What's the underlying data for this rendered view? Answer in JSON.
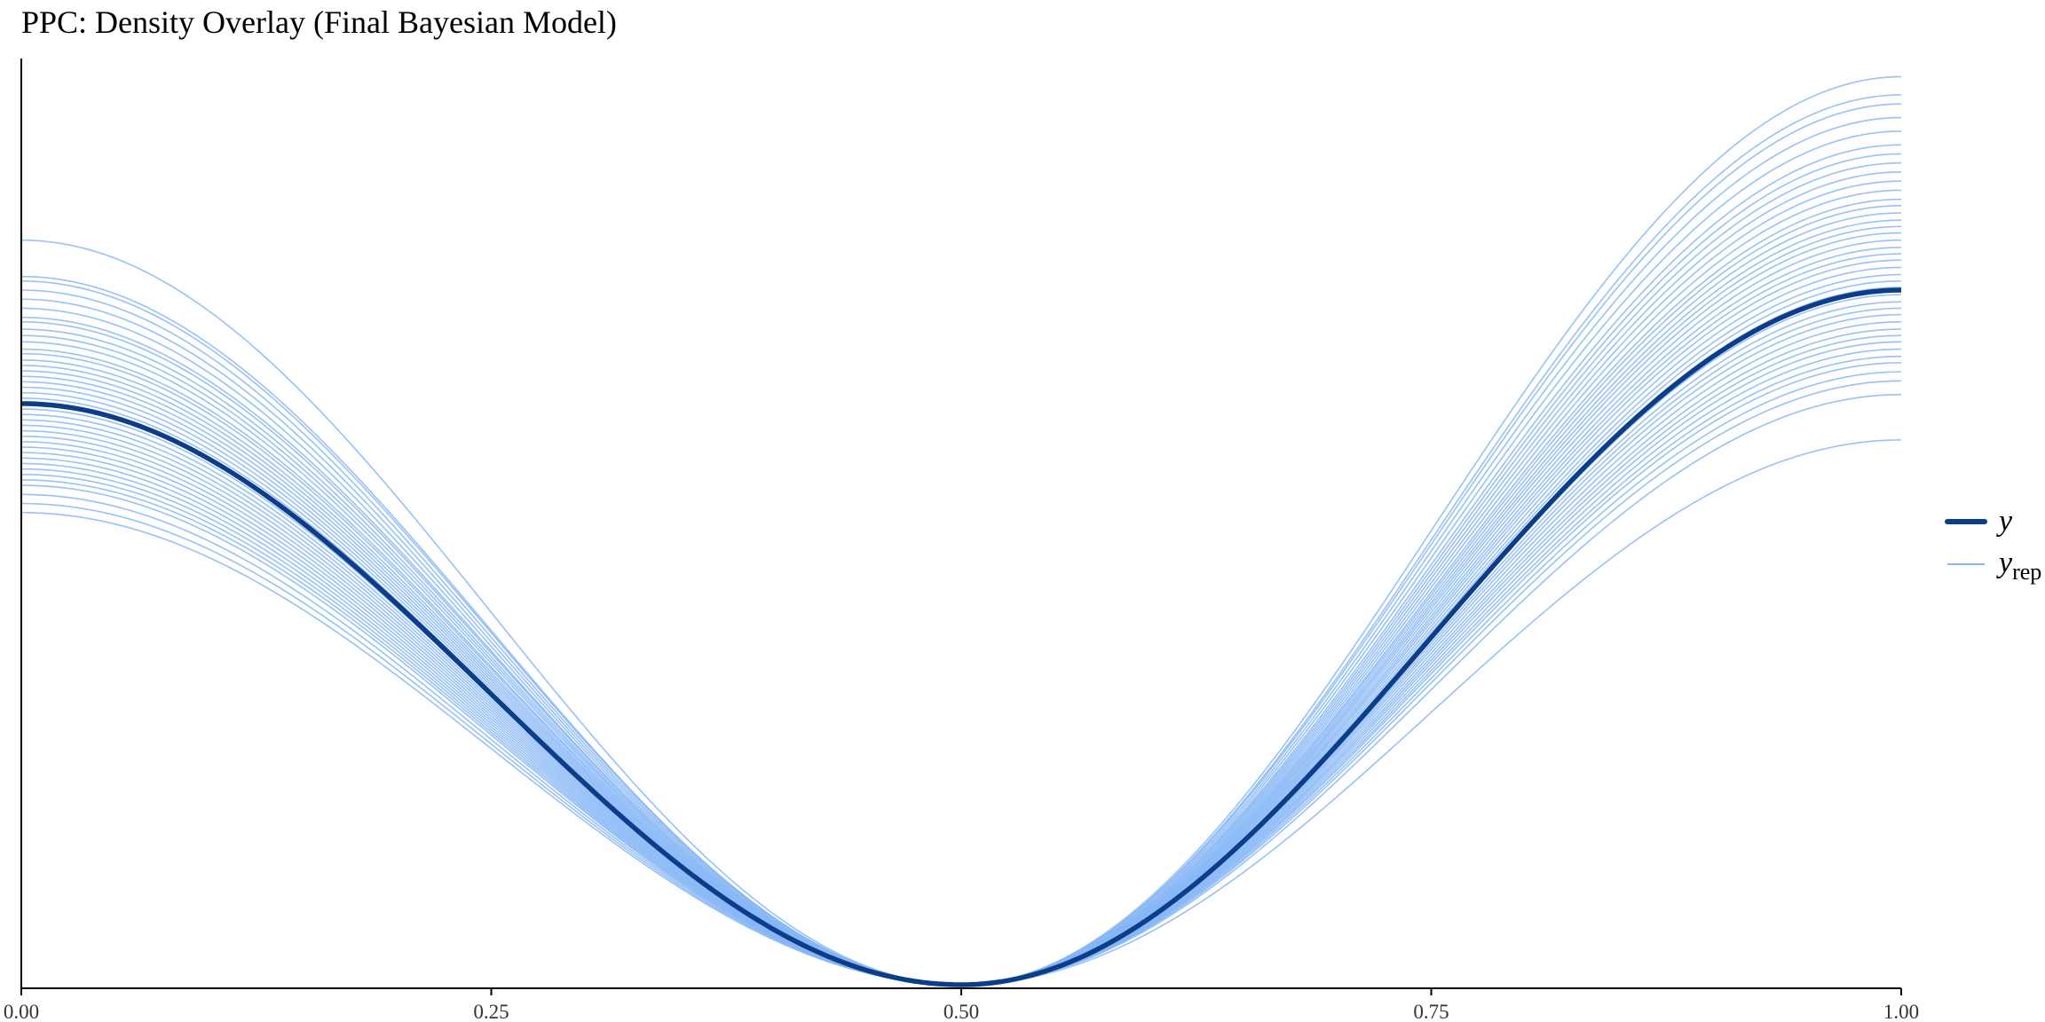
{
  "chart_data": {
    "type": "line",
    "title": "PPC: Density Overlay (Final Bayesian Model)",
    "xlabel": "",
    "ylabel": "",
    "xlim": [
      0,
      1
    ],
    "ylim": [
      0,
      1.02
    ],
    "x_ticks": [
      "0.00",
      "0.25",
      "0.50",
      "0.75",
      "1.00"
    ],
    "grid": false,
    "legend_position": "right",
    "legend": [
      {
        "name": "y",
        "style": "thick dark line"
      },
      {
        "name": "y",
        "subscript": "rep",
        "style": "thin light lines"
      }
    ],
    "colors": {
      "y": "#0b3d8a",
      "y_rep": "#86b6f6",
      "axis": "#000000"
    },
    "density_shape": "raised-cosine: density(x) = left*((1+cos(2*pi*x))/2) for x<0.5, right*((1+cos(2*pi*x))/2) for x>=0.5",
    "series": [
      {
        "name": "y",
        "left_peak": 0.64,
        "right_peak": 0.765
      }
    ],
    "y_rep_left_peaks": [
      0.82,
      0.78,
      0.775,
      0.765,
      0.755,
      0.745,
      0.735,
      0.73,
      0.722,
      0.715,
      0.708,
      0.7,
      0.695,
      0.688,
      0.682,
      0.676,
      0.67,
      0.664,
      0.658,
      0.652,
      0.646,
      0.64,
      0.634,
      0.628,
      0.622,
      0.616,
      0.61,
      0.604,
      0.598,
      0.592,
      0.586,
      0.58,
      0.574,
      0.568,
      0.562,
      0.556,
      0.55,
      0.54,
      0.53,
      0.52
    ],
    "y_rep_right_peaks": [
      1.0,
      0.98,
      0.97,
      0.955,
      0.94,
      0.925,
      0.915,
      0.905,
      0.895,
      0.885,
      0.875,
      0.865,
      0.858,
      0.85,
      0.842,
      0.835,
      0.828,
      0.82,
      0.812,
      0.805,
      0.798,
      0.79,
      0.782,
      0.775,
      0.768,
      0.76,
      0.752,
      0.745,
      0.738,
      0.73,
      0.722,
      0.715,
      0.708,
      0.7,
      0.692,
      0.685,
      0.675,
      0.665,
      0.65,
      0.6
    ]
  }
}
